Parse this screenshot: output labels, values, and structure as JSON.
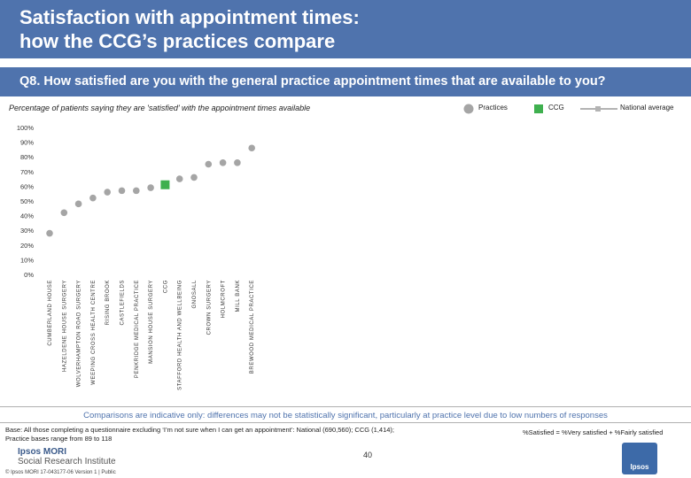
{
  "header": {
    "title_line1": "Satisfaction with appointment times:",
    "title_line2": "how the CCG’s practices compare"
  },
  "question": "Q8. How satisfied are you with the general practice appointment times that are available to you?",
  "subtitle": "Percentage of patients saying they are 'satisfied' with the appointment times available",
  "legend": {
    "practices": "Practices",
    "ccg": "CCG",
    "national": "National average"
  },
  "colors": {
    "header": "#4f73ad",
    "practice_point": "#a5a5a5",
    "ccg_point": "#3fb04f",
    "national_line": "#b3b3b3",
    "text_accent": "#4f73ad"
  },
  "chart_data": {
    "type": "scatter",
    "title": "Percentage of patients saying they are 'satisfied' with the appointment times available",
    "xlabel": "",
    "ylabel": "",
    "ylim": [
      0,
      100
    ],
    "yticks": [
      "100%",
      "90%",
      "80%",
      "70%",
      "60%",
      "50%",
      "40%",
      "30%",
      "20%",
      "10%",
      "0%"
    ],
    "categories": [
      "CUMBERLAND HOUSE",
      "HAZELDENE HOUSE SURGERY",
      "WOLVERHAMPTON ROAD SURGERY",
      "WEEPING CROSS HEALTH CENTRE",
      "RISING BROOK",
      "CASTLEFIELDS",
      "PENKRIDGE MEDICAL PRACTICE",
      "MANSION HOUSE SURGERY",
      "CCG",
      "STAFFORD HEALTH AND WELLBEING",
      "GNOSALL",
      "CROWN SURGERY",
      "HOLMCROFT",
      "MILL BANK",
      "BREWOOD MEDICAL PRACTICE"
    ],
    "series": [
      {
        "name": "Practices",
        "values": [
          28,
          42,
          48,
          52,
          56,
          57,
          57,
          59,
          null,
          65,
          66,
          75,
          76,
          76,
          86
        ]
      },
      {
        "name": "CCG",
        "values": [
          null,
          null,
          null,
          null,
          null,
          null,
          null,
          null,
          61,
          null,
          null,
          null,
          null,
          null,
          null
        ]
      }
    ],
    "national_average": null,
    "grid": false
  },
  "footer": {
    "comparison_note": "Comparisons are indicative only: differences may not be statistically significant, particularly at practice level due to low numbers of responses",
    "base_line1": "Base: All those completing a questionnaire excluding ‘I’m not sure when I can get an appointment’: National (690,560); CCG (1,414);",
    "base_line2": "Practice bases range from 89 to 118",
    "satisfied_definition": "%Satisfied = %Very satisfied + %Fairly satisfied",
    "brand_line1": "Ipsos MORI",
    "brand_line2": "Social Research Institute",
    "page_number": "40",
    "copyright": "© Ipsos MORI     17-043177-06 Version 1 | Public",
    "logo_text": "Ipsos"
  }
}
